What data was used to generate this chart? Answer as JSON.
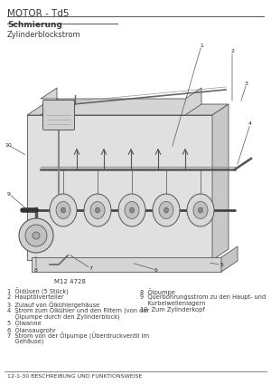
{
  "page_header": "MOTOR - Td5",
  "section_title": "Schmierung",
  "subsection_title": "Zylinderblockstrom",
  "figure_ref": "M12 4728",
  "footer": "12-1-30 BESCHREIBUNG UND FUNKTIONSWEISE",
  "legend_left_lines": [
    "1  Öldüsen (5 Stück)",
    "2  Hauptölverteiler",
    "3  Zulauf von Ölkühlergehäuse",
    "4  Strom zum Ölkühler und den Filtern (von der",
    "    Ölpumpe durch den Zylinderblock)",
    "5  Ölwanne",
    "6  Ölansaugrohr",
    "7  Strom von der Ölpumpe (Überdruckventil im",
    "    Gehäuse)"
  ],
  "legend_right_lines": [
    "8  Ölpumpe",
    "9  Querbohrungsstrom zu den Haupt- und",
    "    Kurbelwellenlagern",
    "10  Zum Zylinderkopf"
  ],
  "bg_color": "#ffffff",
  "text_color": "#3a3a3a",
  "header_color": "#3a3a3a",
  "line_color": "#555555",
  "header_fontsize": 7.5,
  "section_fontsize": 6.5,
  "sub_fontsize": 6.0,
  "legend_fontsize": 4.8,
  "footer_fontsize": 4.5,
  "figref_fontsize": 5.0
}
